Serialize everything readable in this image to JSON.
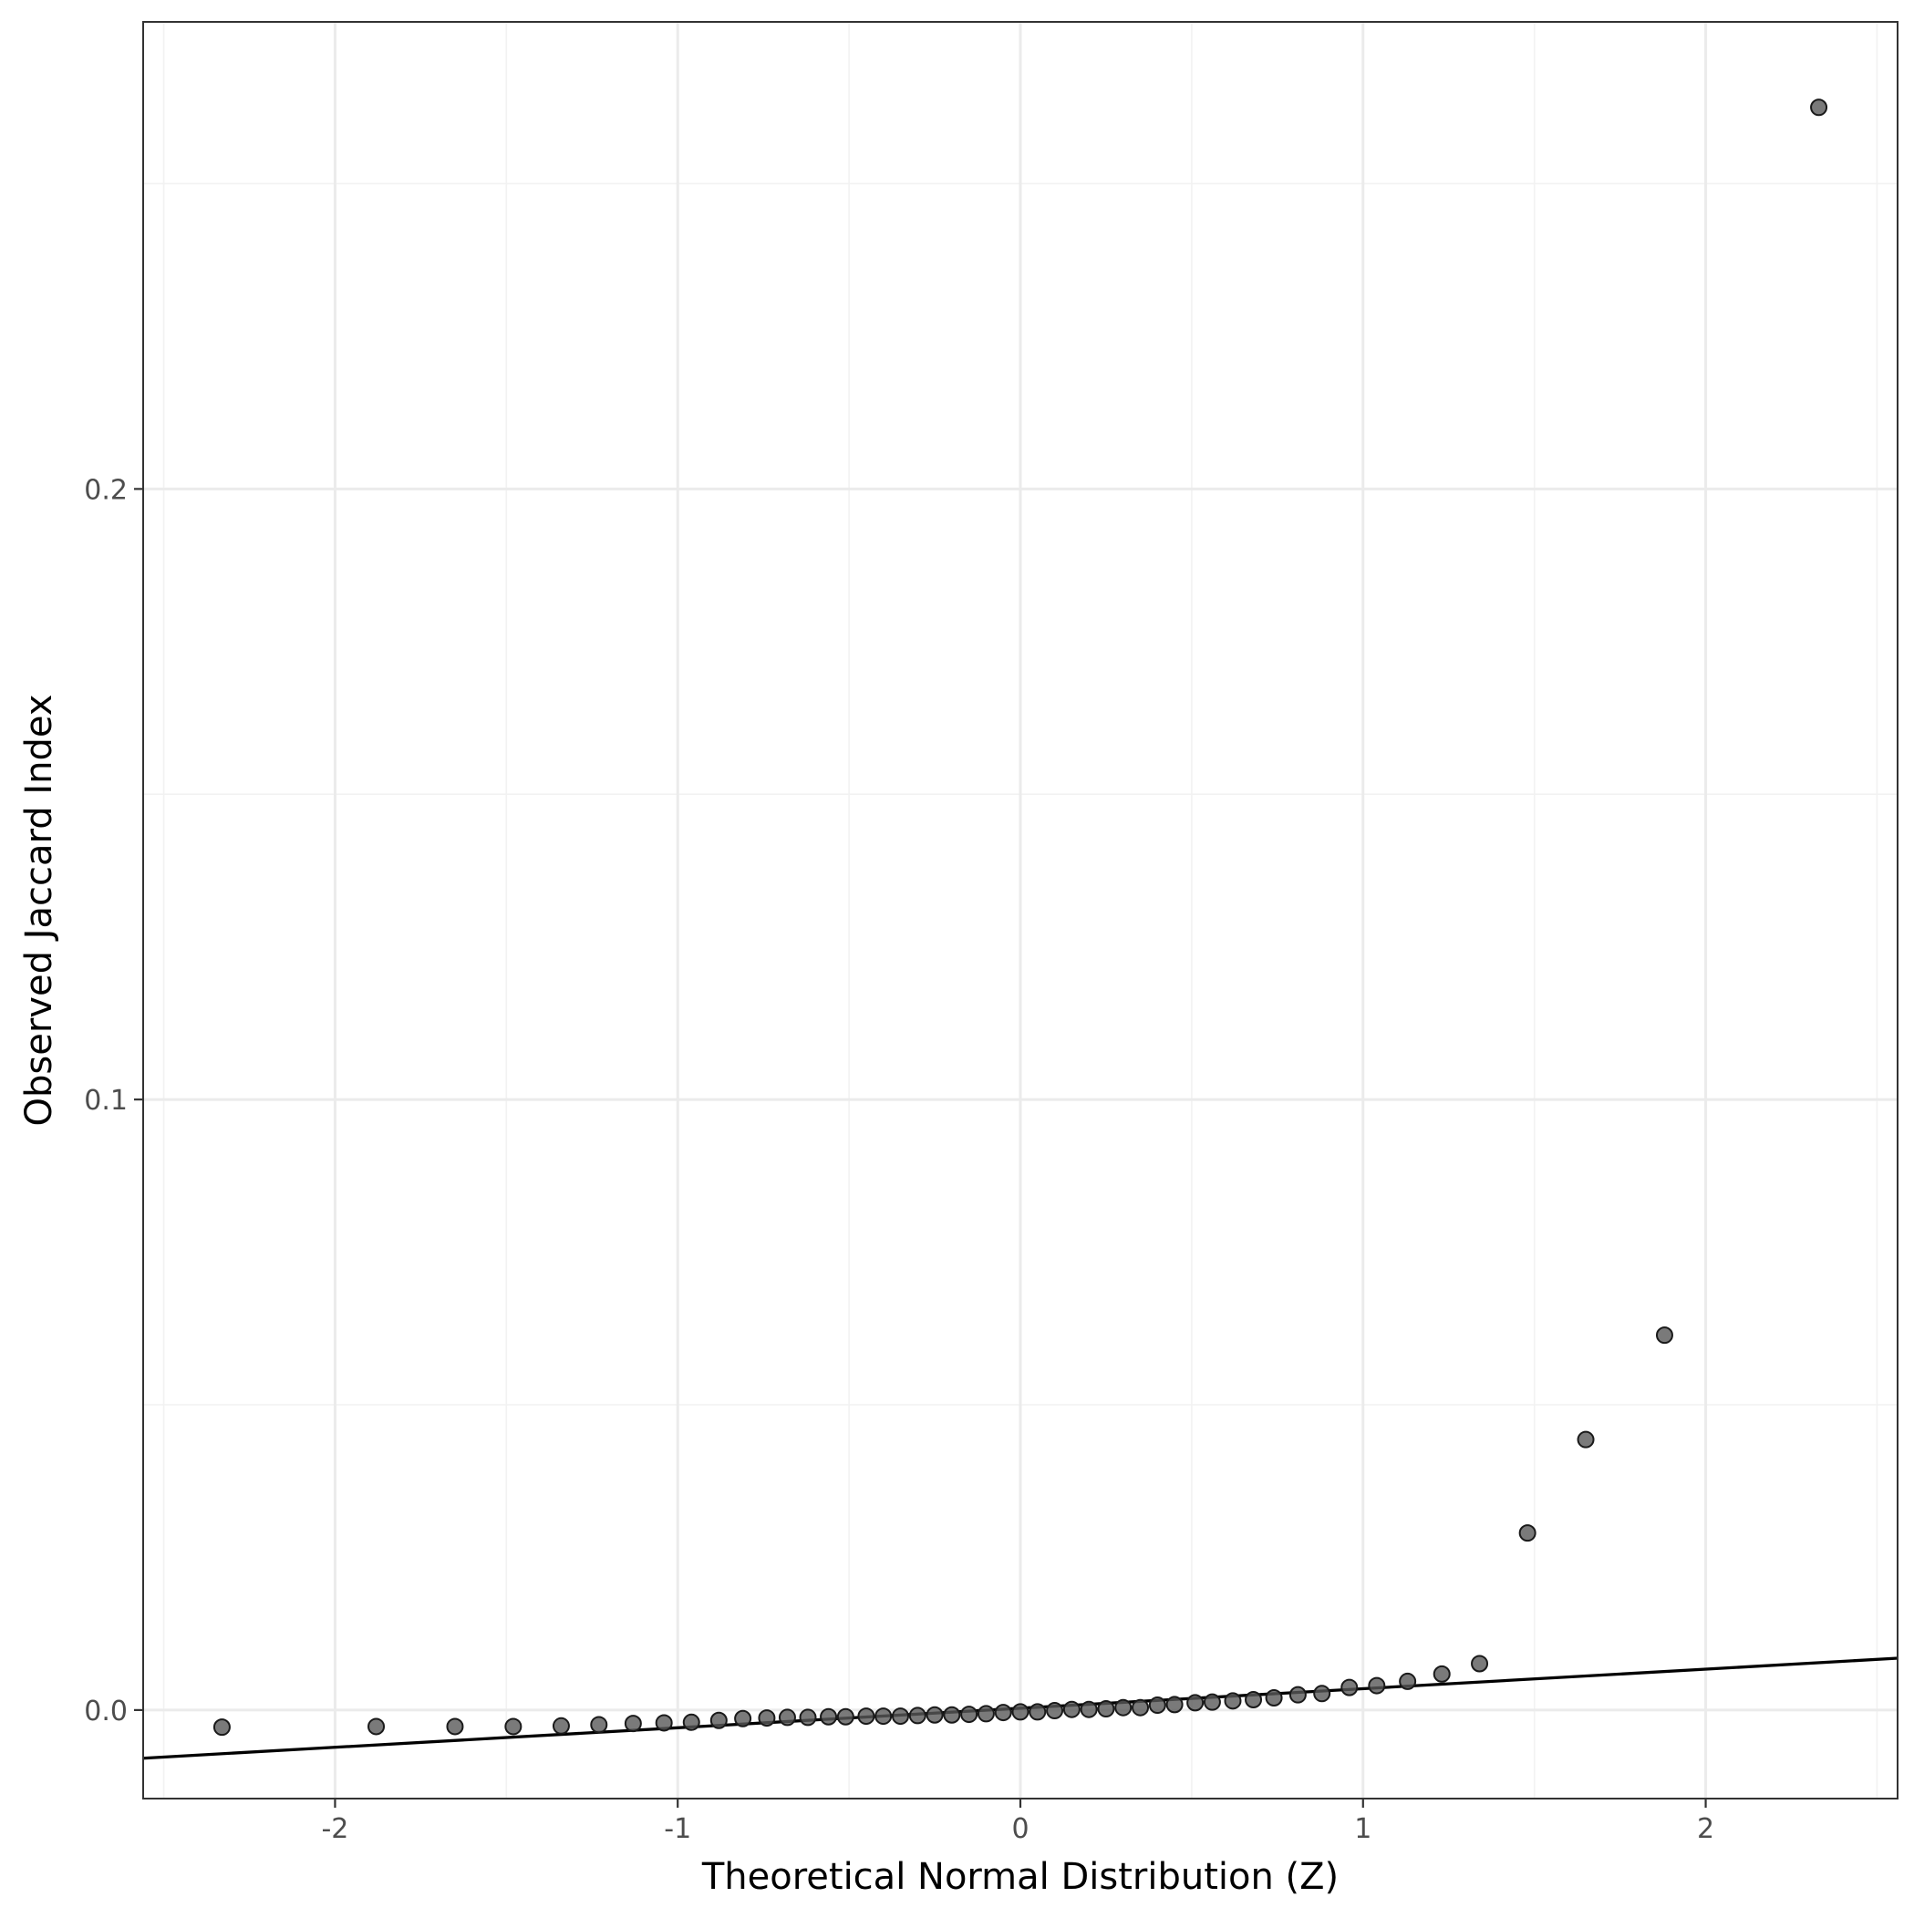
{
  "chart_data": {
    "type": "scatter",
    "title": "",
    "xlabel": "Theoretical Normal Distribution (Z)",
    "ylabel": "Observed Jaccard Index",
    "xlim": [
      -2.56,
      2.56
    ],
    "ylim": [
      -0.0145,
      0.2765
    ],
    "x_ticks": [
      -2,
      -1,
      0,
      1,
      2
    ],
    "x_tick_labels": [
      "-2",
      "-1",
      "0",
      "1",
      "2"
    ],
    "y_ticks": [
      0.0,
      0.1,
      0.2
    ],
    "y_tick_labels": [
      "0.0",
      "0.1",
      "0.2"
    ],
    "grid": true,
    "legend": "none",
    "colors": {
      "point_fill": "#595959",
      "point_stroke": "#1a1a1a",
      "line": "#000000",
      "grid": "#ebebeb"
    },
    "reference_line": {
      "intercept": 0.0003,
      "slope": 0.0032
    },
    "points": {
      "x": [
        -2.33,
        -1.88,
        -1.65,
        -1.48,
        -1.34,
        -1.23,
        -1.13,
        -1.04,
        -0.96,
        -0.88,
        -0.81,
        -0.74,
        -0.68,
        -0.62,
        -0.56,
        -0.51,
        -0.45,
        -0.4,
        -0.35,
        -0.3,
        -0.25,
        -0.2,
        -0.15,
        -0.1,
        -0.05,
        0.0,
        0.05,
        0.1,
        0.15,
        0.2,
        0.25,
        0.3,
        0.35,
        0.4,
        0.45,
        0.51,
        0.56,
        0.62,
        0.68,
        0.74,
        0.81,
        0.88,
        0.96,
        1.04,
        1.13,
        1.23,
        1.34,
        1.48,
        1.65,
        1.88,
        2.33
      ],
      "y": [
        -0.0028,
        -0.0027,
        -0.0027,
        -0.0027,
        -0.0026,
        -0.0024,
        -0.0022,
        -0.0021,
        -0.002,
        -0.0017,
        -0.0014,
        -0.0013,
        -0.0012,
        -0.0012,
        -0.0011,
        -0.0011,
        -0.001,
        -0.001,
        -0.001,
        -0.0009,
        -0.0008,
        -0.0008,
        -0.0007,
        -0.0006,
        -0.0004,
        -0.0003,
        -0.0003,
        -0.0001,
        0.0001,
        0.0001,
        0.0002,
        0.0004,
        0.0004,
        0.0008,
        0.0009,
        0.0012,
        0.0013,
        0.0015,
        0.0017,
        0.002,
        0.0025,
        0.0027,
        0.0037,
        0.004,
        0.0047,
        0.0059,
        0.0076,
        0.029,
        0.0443,
        0.0614,
        0.2625
      ]
    }
  }
}
